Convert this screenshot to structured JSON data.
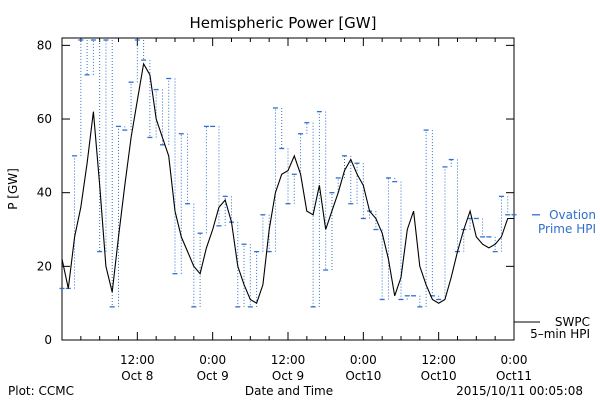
{
  "chart_data": {
    "type": "line",
    "title": "Hemispheric Power [GW]",
    "xlabel": "Date and Time",
    "ylabel": "P [GW]",
    "ylim": [
      0,
      82
    ],
    "xlim_hours": [
      0,
      72
    ],
    "y_ticks": [
      0,
      20,
      40,
      60,
      80
    ],
    "x_ticks": [
      {
        "hour": 12,
        "time": "12:00",
        "date": "Oct 8"
      },
      {
        "hour": 24,
        "time": "0:00",
        "date": "Oct 9"
      },
      {
        "hour": 36,
        "time": "12:00",
        "date": "Oct 9"
      },
      {
        "hour": 48,
        "time": "0:00",
        "date": "Oct10"
      },
      {
        "hour": 60,
        "time": "12:00",
        "date": "Oct10"
      },
      {
        "hour": 72,
        "time": "0:00",
        "date": "Oct11"
      }
    ],
    "grid": false,
    "legend_position": "right",
    "series": [
      {
        "name": "Ovation Prime HPI",
        "legend_line1": "Ovation",
        "legend_line2": "Prime HPI",
        "color": "#2f6fce",
        "style": "step-dashes",
        "x": [
          0,
          1,
          2,
          3,
          4,
          5,
          6,
          7,
          8,
          9,
          10,
          11,
          12,
          13,
          14,
          15,
          16,
          17,
          18,
          19,
          20,
          21,
          22,
          23,
          24,
          25,
          26,
          27,
          28,
          29,
          30,
          31,
          32,
          33,
          34,
          35,
          36,
          37,
          38,
          39,
          40,
          41,
          42,
          43,
          44,
          45,
          46,
          47,
          48,
          49,
          50,
          51,
          52,
          53,
          54,
          55,
          56,
          57,
          58,
          59,
          60,
          61,
          62,
          63,
          64,
          65,
          66,
          67,
          68,
          69,
          70,
          71,
          72
        ],
        "values": [
          14,
          14,
          50,
          82,
          72,
          82,
          24,
          82,
          9,
          58,
          57,
          70,
          82,
          76,
          55,
          68,
          53,
          71,
          18,
          56,
          37,
          9,
          29,
          58,
          58,
          31,
          39,
          32,
          9,
          26,
          9,
          24,
          34,
          24,
          63,
          52,
          37,
          45,
          56,
          59,
          9,
          62,
          19,
          40,
          44,
          50,
          37,
          48,
          33,
          35,
          30,
          11,
          44,
          43,
          11,
          12,
          12,
          9,
          57,
          12,
          11,
          47,
          49,
          24,
          30,
          33,
          33,
          28,
          28,
          24,
          39,
          34,
          34
        ]
      },
      {
        "name": "SWPC 5-min HPI",
        "legend_line1": "SWPC",
        "legend_line2": "5–min HPI",
        "color": "#000000",
        "style": "solid",
        "x": [
          0,
          1,
          2,
          3,
          4,
          5,
          6,
          7,
          8,
          9,
          10,
          11,
          12,
          13,
          14,
          15,
          16,
          17,
          18,
          19,
          20,
          21,
          22,
          23,
          24,
          25,
          26,
          27,
          28,
          29,
          30,
          31,
          32,
          33,
          34,
          35,
          36,
          37,
          38,
          39,
          40,
          41,
          42,
          43,
          44,
          45,
          46,
          47,
          48,
          49,
          50,
          51,
          52,
          53,
          54,
          55,
          56,
          57,
          58,
          59,
          60,
          61,
          62,
          63,
          64,
          65,
          66,
          67,
          68,
          69,
          70,
          71,
          72
        ],
        "values": [
          22,
          14,
          28,
          36,
          48,
          62,
          42,
          20,
          13,
          28,
          42,
          55,
          65,
          75,
          72,
          60,
          55,
          50,
          35,
          28,
          24,
          20,
          18,
          25,
          30,
          36,
          38,
          32,
          20,
          15,
          11,
          10,
          15,
          30,
          40,
          45,
          46,
          50,
          45,
          35,
          34,
          42,
          30,
          35,
          40,
          46,
          49,
          45,
          42,
          35,
          33,
          29,
          22,
          12,
          17,
          30,
          35,
          20,
          15,
          11,
          10,
          11,
          17,
          24,
          30,
          35,
          28,
          26,
          25,
          26,
          28,
          33,
          33
        ]
      }
    ]
  },
  "footer": {
    "plot_credit": "Plot: CCMC",
    "timestamp": "2015/10/11 00:05:08"
  }
}
